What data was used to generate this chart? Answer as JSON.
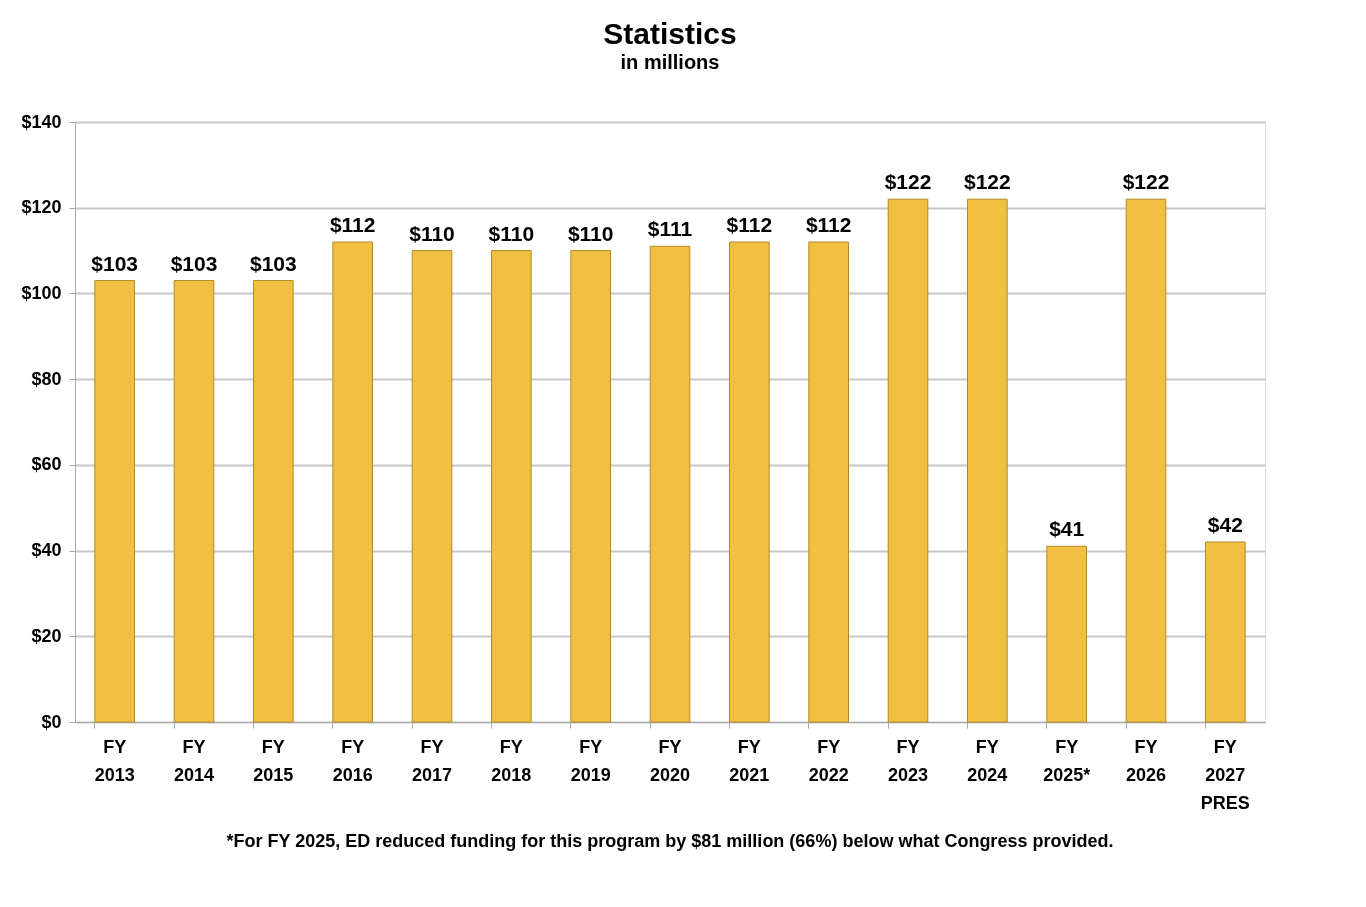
{
  "chart_data": {
    "type": "bar",
    "title": "Statistics",
    "subtitle": "in millions",
    "categories": [
      "FY 2013",
      "FY 2014",
      "FY 2015",
      "FY 2016",
      "FY 2017",
      "FY 2018",
      "FY 2019",
      "FY 2020",
      "FY 2021",
      "FY 2022",
      "FY 2023",
      "FY 2024",
      "FY 2025*",
      "FY 2026",
      "FY 2027 PRES"
    ],
    "values": [
      103,
      103,
      103,
      112,
      110,
      110,
      110,
      111,
      112,
      112,
      122,
      122,
      41,
      122,
      42
    ],
    "value_labels": [
      "$103",
      "$103",
      "$103",
      "$112",
      "$110",
      "$110",
      "$110",
      "$111",
      "$112",
      "$112",
      "$122",
      "$122",
      "$41",
      "$122",
      "$42"
    ],
    "color": "#f2c040",
    "ylim": [
      0,
      140
    ],
    "yticks": [
      {
        "value": 0,
        "label": "$0"
      },
      {
        "value": 20,
        "label": "$20"
      },
      {
        "value": 40,
        "label": "$40"
      },
      {
        "value": 60,
        "label": "$60"
      },
      {
        "value": 80,
        "label": "$80"
      },
      {
        "value": 100,
        "label": "$100"
      },
      {
        "value": 120,
        "label": "$120"
      },
      {
        "value": 140,
        "label": "$140"
      }
    ],
    "grid": "y",
    "annotations": [
      "*For FY 2025, ED reduced funding for this program by $81 million (66%) below what Congress provided."
    ]
  }
}
